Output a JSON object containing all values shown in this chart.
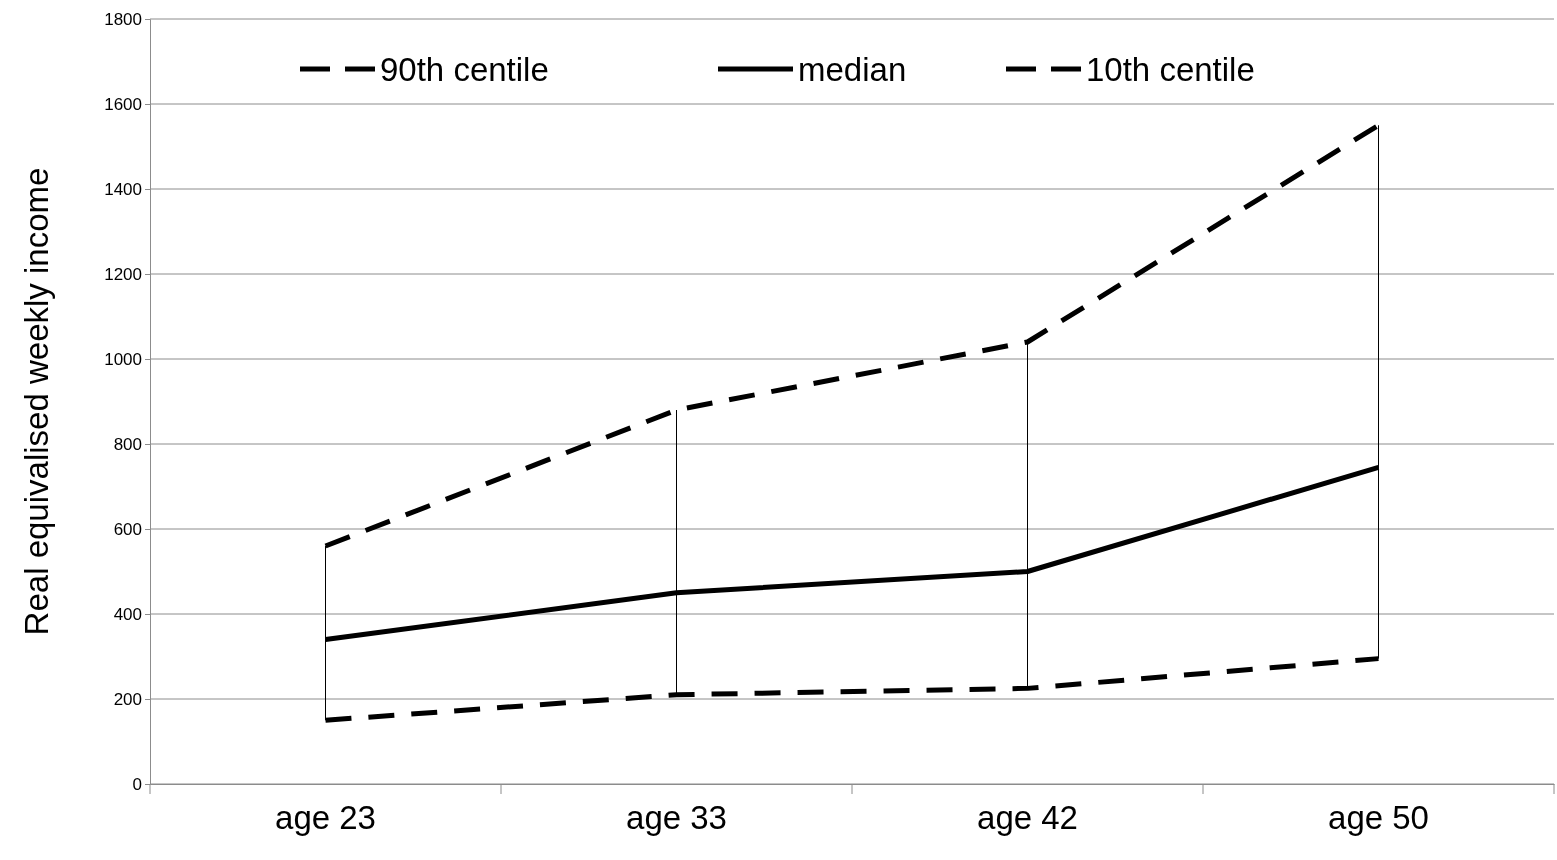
{
  "chart_data": {
    "type": "line",
    "ylabel": "Real equivalised weekly income",
    "categories": [
      "age 23",
      "age 33",
      "age 42",
      "age 50"
    ],
    "series": [
      {
        "name": "90th centile",
        "color": "#000000",
        "line_style": "dashed",
        "values": [
          560,
          880,
          1040,
          1550
        ]
      },
      {
        "name": "median",
        "color": "#000000",
        "line_style": "solid",
        "values": [
          340,
          450,
          500,
          745
        ],
        "errors": [
          [
            150,
            560
          ],
          [
            210,
            880
          ],
          [
            225,
            1040
          ],
          [
            295,
            1550
          ]
        ]
      },
      {
        "name": "10th centile",
        "color": "#000000",
        "line_style": "dashed",
        "values": [
          150,
          210,
          225,
          295
        ]
      }
    ],
    "ylim": [
      0,
      1800
    ],
    "yticks": [
      0,
      200,
      400,
      600,
      800,
      1000,
      1200,
      1400,
      1600,
      1800
    ],
    "grid": "y",
    "legend": "top",
    "marker": "none"
  }
}
